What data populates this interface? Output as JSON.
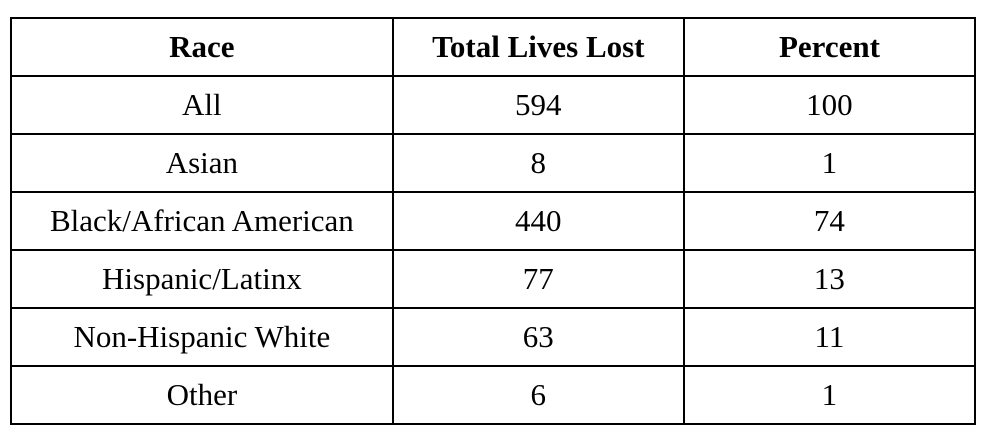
{
  "colors": {
    "background": "#ffffff",
    "border": "#000000",
    "text": "#000000"
  },
  "table": {
    "columns": [
      "Race",
      "Total Lives Lost",
      "Percent"
    ],
    "rows": [
      [
        "All",
        "594",
        "100"
      ],
      [
        "Asian",
        "8",
        "1"
      ],
      [
        "Black/African American",
        "440",
        "74"
      ],
      [
        "Hispanic/Latinx",
        "77",
        "13"
      ],
      [
        "Non-Hispanic White",
        "63",
        "11"
      ],
      [
        "Other",
        "6",
        "1"
      ]
    ]
  }
}
